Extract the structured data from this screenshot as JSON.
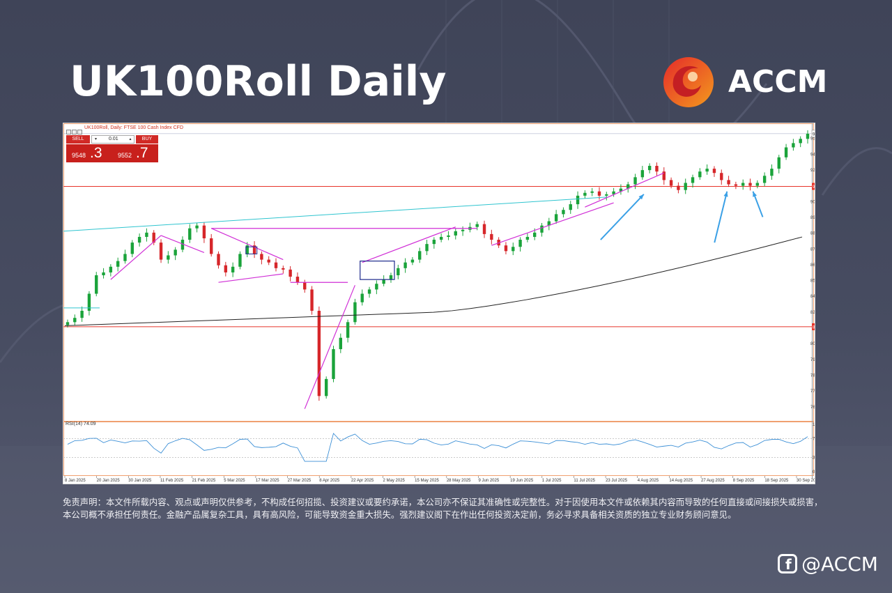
{
  "page": {
    "title": "UK100Roll Daily",
    "brand": "ACCM",
    "disclaimer": "免责声明：本文件所载内容、观点或声明仅供参考，不构成任何招揽、投资建议或要约承诺，本公司亦不保证其准确性或完整性。对于因使用本文件或依赖其内容而导致的任何直接或间接损失或损害，本公司概不承担任何责任。金融产品属复杂工具，具有高风险，可能导致资金重大损失。强烈建议阁下在作出任何投资决定前，务必寻求具备相关资质的独立专业财务顾问意见。",
    "social_handle": "@ACCM",
    "colors": {
      "background": "#474c61",
      "accent_red": "#e8342a",
      "accent_orange": "#f39a1e"
    },
    "icons": [
      "accm-logo-icon",
      "facebook-icon"
    ]
  },
  "chart_header": {
    "symbol_text": "UK100Roll, Daily:  FTSE 100 Cash Index CFD"
  },
  "trade_panel": {
    "sell_label": "SELL",
    "buy_label": "BUY",
    "lot_value": "0.01",
    "sell_price_small": "9548",
    "sell_price_big": ".3",
    "buy_price_small": "9552",
    "buy_price_big": ".7"
  },
  "chart_data": {
    "type": "candlestick",
    "title": "UK100Roll, Daily:  FTSE 100 Cash Index CFD",
    "ylim": [
      7530,
      9580
    ],
    "y_ticks": [
      "9512.9",
      "9401.7",
      "9290.6",
      "9068.4",
      "8957.3",
      "8846.2",
      "8735.1",
      "8624.0",
      "8512.9",
      "8401.8",
      "8290.7",
      "8068.5",
      "7957.4",
      "7846.3",
      "7735.2",
      "7624.1"
    ],
    "current_price_label": "9546.3",
    "horizontal_levels": [
      {
        "label": "9175.6",
        "value": 9175.6,
        "color": "#e8342a"
      },
      {
        "label": "8187.7",
        "value": 8187.7,
        "color": "#e8342a"
      }
    ],
    "x_labels": [
      "8 Jan 2025",
      "20 Jan 2025",
      "30 Jan 2025",
      "11 Feb 2025",
      "21 Feb 2025",
      "5 Mar 2025",
      "17 Mar 2025",
      "27 Mar 2025",
      "8 Apr 2025",
      "22 Apr 2025",
      "2 May 2025",
      "15 May 2025",
      "28 May 2025",
      "9 Jun 2025",
      "19 Jun 2025",
      "1 Jul 2025",
      "11 Jul 2025",
      "23 Jul 2025",
      "4 Aug 2025",
      "14 Aug 2025",
      "27 Aug 2025",
      "8 Sep 2025",
      "18 Sep 2025",
      "30 Sep 2025"
    ],
    "close_path": [
      8220,
      8250,
      8300,
      8420,
      8550,
      8570,
      8610,
      8650,
      8700,
      8780,
      8820,
      8850,
      8780,
      8660,
      8690,
      8730,
      8800,
      8880,
      8900,
      8810,
      8700,
      8620,
      8570,
      8610,
      8700,
      8760,
      8700,
      8660,
      8640,
      8600,
      8590,
      8540,
      8500,
      8450,
      8300,
      7700,
      7820,
      8030,
      8110,
      8220,
      8360,
      8420,
      8450,
      8490,
      8520,
      8550,
      8600,
      8640,
      8660,
      8720,
      8770,
      8800,
      8820,
      8830,
      8860,
      8870,
      8890,
      8910,
      8840,
      8800,
      8760,
      8720,
      8750,
      8800,
      8820,
      8850,
      8900,
      8930,
      8980,
      9010,
      9050,
      9110,
      9130,
      9140,
      9110,
      9120,
      9140,
      9160,
      9190,
      9240,
      9290,
      9320,
      9280,
      9220,
      9180,
      9150,
      9200,
      9240,
      9280,
      9300,
      9270,
      9220,
      9190,
      9180,
      9200,
      9180,
      9200,
      9250,
      9300,
      9380,
      9450,
      9480,
      9510,
      9546
    ],
    "moving_average_200": {
      "start": 8195,
      "mid": 8300,
      "end": 8830,
      "color": "#222222"
    },
    "rsi": {
      "label": "RSI(14) 74.09",
      "period": 14,
      "current": 74.09,
      "ylim": [
        0,
        100
      ],
      "y_ticks": [
        "100.00",
        "70.00",
        "30.00",
        "0.00"
      ],
      "levels": [
        70,
        30
      ]
    },
    "annotations": {
      "cyan_trendline": true,
      "magenta_channels": true,
      "blue_arrows": 3
    }
  }
}
